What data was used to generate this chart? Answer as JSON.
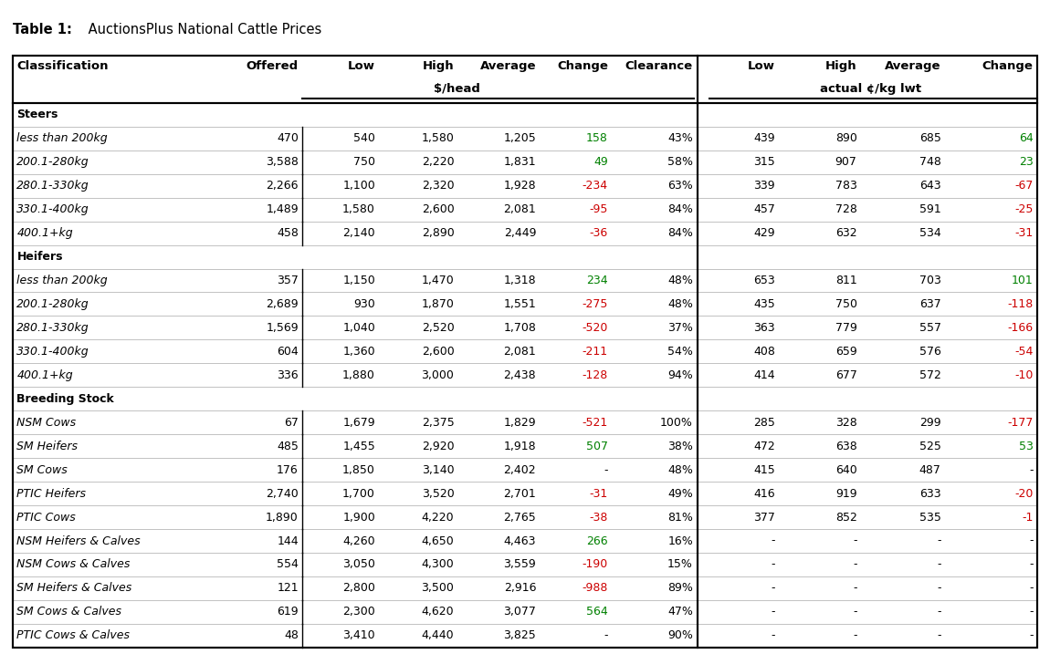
{
  "title_bold": "Table 1:",
  "title_rest": " AuctionsPlus National Cattle Prices",
  "headers": [
    "Classification",
    "Offered",
    "Low",
    "High",
    "Average",
    "Change",
    "Clearance",
    "Low",
    "High",
    "Average",
    "Change"
  ],
  "subheader_left": "$/head",
  "subheader_right": "actual ¢/kg lwt",
  "rows": [
    {
      "is_section": true,
      "classification": "Steers",
      "offered": "",
      "low": "",
      "high": "",
      "average": "",
      "change": "",
      "change_color": "black",
      "clearance": "",
      "low2": "",
      "high2": "",
      "average2": "",
      "change2": "",
      "change2_color": "black"
    },
    {
      "is_section": false,
      "classification": "less than 200kg",
      "offered": "470",
      "low": "540",
      "high": "1,580",
      "average": "1,205",
      "change": "158",
      "change_color": "green",
      "clearance": "43%",
      "low2": "439",
      "high2": "890",
      "average2": "685",
      "change2": "64",
      "change2_color": "green"
    },
    {
      "is_section": false,
      "classification": "200.1-280kg",
      "offered": "3,588",
      "low": "750",
      "high": "2,220",
      "average": "1,831",
      "change": "49",
      "change_color": "green",
      "clearance": "58%",
      "low2": "315",
      "high2": "907",
      "average2": "748",
      "change2": "23",
      "change2_color": "green"
    },
    {
      "is_section": false,
      "classification": "280.1-330kg",
      "offered": "2,266",
      "low": "1,100",
      "high": "2,320",
      "average": "1,928",
      "change": "-234",
      "change_color": "red",
      "clearance": "63%",
      "low2": "339",
      "high2": "783",
      "average2": "643",
      "change2": "-67",
      "change2_color": "red"
    },
    {
      "is_section": false,
      "classification": "330.1-400kg",
      "offered": "1,489",
      "low": "1,580",
      "high": "2,600",
      "average": "2,081",
      "change": "-95",
      "change_color": "red",
      "clearance": "84%",
      "low2": "457",
      "high2": "728",
      "average2": "591",
      "change2": "-25",
      "change2_color": "red"
    },
    {
      "is_section": false,
      "classification": "400.1+kg",
      "offered": "458",
      "low": "2,140",
      "high": "2,890",
      "average": "2,449",
      "change": "-36",
      "change_color": "red",
      "clearance": "84%",
      "low2": "429",
      "high2": "632",
      "average2": "534",
      "change2": "-31",
      "change2_color": "red"
    },
    {
      "is_section": true,
      "classification": "Heifers",
      "offered": "",
      "low": "",
      "high": "",
      "average": "",
      "change": "",
      "change_color": "black",
      "clearance": "",
      "low2": "",
      "high2": "",
      "average2": "",
      "change2": "",
      "change2_color": "black"
    },
    {
      "is_section": false,
      "classification": "less than 200kg",
      "offered": "357",
      "low": "1,150",
      "high": "1,470",
      "average": "1,318",
      "change": "234",
      "change_color": "green",
      "clearance": "48%",
      "low2": "653",
      "high2": "811",
      "average2": "703",
      "change2": "101",
      "change2_color": "green"
    },
    {
      "is_section": false,
      "classification": "200.1-280kg",
      "offered": "2,689",
      "low": "930",
      "high": "1,870",
      "average": "1,551",
      "change": "-275",
      "change_color": "red",
      "clearance": "48%",
      "low2": "435",
      "high2": "750",
      "average2": "637",
      "change2": "-118",
      "change2_color": "red"
    },
    {
      "is_section": false,
      "classification": "280.1-330kg",
      "offered": "1,569",
      "low": "1,040",
      "high": "2,520",
      "average": "1,708",
      "change": "-520",
      "change_color": "red",
      "clearance": "37%",
      "low2": "363",
      "high2": "779",
      "average2": "557",
      "change2": "-166",
      "change2_color": "red"
    },
    {
      "is_section": false,
      "classification": "330.1-400kg",
      "offered": "604",
      "low": "1,360",
      "high": "2,600",
      "average": "2,081",
      "change": "-211",
      "change_color": "red",
      "clearance": "54%",
      "low2": "408",
      "high2": "659",
      "average2": "576",
      "change2": "-54",
      "change2_color": "red"
    },
    {
      "is_section": false,
      "classification": "400.1+kg",
      "offered": "336",
      "low": "1,880",
      "high": "3,000",
      "average": "2,438",
      "change": "-128",
      "change_color": "red",
      "clearance": "94%",
      "low2": "414",
      "high2": "677",
      "average2": "572",
      "change2": "-10",
      "change2_color": "red"
    },
    {
      "is_section": true,
      "classification": "Breeding Stock",
      "offered": "",
      "low": "",
      "high": "",
      "average": "",
      "change": "",
      "change_color": "black",
      "clearance": "",
      "low2": "",
      "high2": "",
      "average2": "",
      "change2": "",
      "change2_color": "black"
    },
    {
      "is_section": false,
      "classification": "NSM Cows",
      "offered": "67",
      "low": "1,679",
      "high": "2,375",
      "average": "1,829",
      "change": "-521",
      "change_color": "red",
      "clearance": "100%",
      "low2": "285",
      "high2": "328",
      "average2": "299",
      "change2": "-177",
      "change2_color": "red"
    },
    {
      "is_section": false,
      "classification": "SM Heifers",
      "offered": "485",
      "low": "1,455",
      "high": "2,920",
      "average": "1,918",
      "change": "507",
      "change_color": "green",
      "clearance": "38%",
      "low2": "472",
      "high2": "638",
      "average2": "525",
      "change2": "53",
      "change2_color": "green"
    },
    {
      "is_section": false,
      "classification": "SM Cows",
      "offered": "176",
      "low": "1,850",
      "high": "3,140",
      "average": "2,402",
      "change": "-",
      "change_color": "black",
      "clearance": "48%",
      "low2": "415",
      "high2": "640",
      "average2": "487",
      "change2": "-",
      "change2_color": "black"
    },
    {
      "is_section": false,
      "classification": "PTIC Heifers",
      "offered": "2,740",
      "low": "1,700",
      "high": "3,520",
      "average": "2,701",
      "change": "-31",
      "change_color": "red",
      "clearance": "49%",
      "low2": "416",
      "high2": "919",
      "average2": "633",
      "change2": "-20",
      "change2_color": "red"
    },
    {
      "is_section": false,
      "classification": "PTIC Cows",
      "offered": "1,890",
      "low": "1,900",
      "high": "4,220",
      "average": "2,765",
      "change": "-38",
      "change_color": "red",
      "clearance": "81%",
      "low2": "377",
      "high2": "852",
      "average2": "535",
      "change2": "-1",
      "change2_color": "red"
    },
    {
      "is_section": false,
      "classification": "NSM Heifers & Calves",
      "offered": "144",
      "low": "4,260",
      "high": "4,650",
      "average": "4,463",
      "change": "266",
      "change_color": "green",
      "clearance": "16%",
      "low2": "-",
      "high2": "-",
      "average2": "-",
      "change2": "-",
      "change2_color": "black"
    },
    {
      "is_section": false,
      "classification": "NSM Cows & Calves",
      "offered": "554",
      "low": "3,050",
      "high": "4,300",
      "average": "3,559",
      "change": "-190",
      "change_color": "red",
      "clearance": "15%",
      "low2": "-",
      "high2": "-",
      "average2": "-",
      "change2": "-",
      "change2_color": "black"
    },
    {
      "is_section": false,
      "classification": "SM Heifers & Calves",
      "offered": "121",
      "low": "2,800",
      "high": "3,500",
      "average": "2,916",
      "change": "-988",
      "change_color": "red",
      "clearance": "89%",
      "low2": "-",
      "high2": "-",
      "average2": "-",
      "change2": "-",
      "change2_color": "black"
    },
    {
      "is_section": false,
      "classification": "SM Cows & Calves",
      "offered": "619",
      "low": "2,300",
      "high": "4,620",
      "average": "3,077",
      "change": "564",
      "change_color": "green",
      "clearance": "47%",
      "low2": "-",
      "high2": "-",
      "average2": "-",
      "change2": "-",
      "change2_color": "black"
    },
    {
      "is_section": false,
      "classification": "PTIC Cows & Calves",
      "offered": "48",
      "low": "3,410",
      "high": "4,440",
      "average": "3,825",
      "change": "-",
      "change_color": "black",
      "clearance": "90%",
      "low2": "-",
      "high2": "-",
      "average2": "-",
      "change2": "-",
      "change2_color": "black"
    }
  ],
  "bg_color": "#ffffff",
  "text_color": "#000000",
  "green_color": "#008000",
  "red_color": "#cc0000",
  "figw": 11.5,
  "figh": 7.17,
  "dpi": 100
}
